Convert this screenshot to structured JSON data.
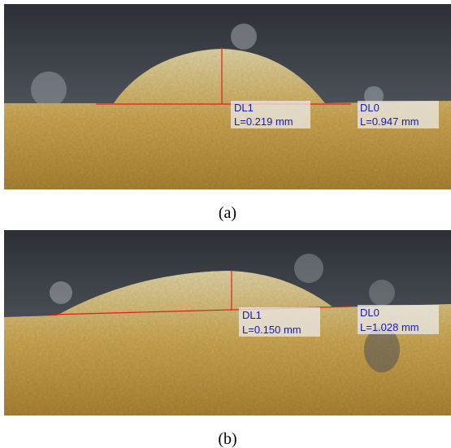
{
  "panels": [
    {
      "label": "(a)",
      "annotations": [
        {
          "name": "DL1",
          "measure": "L=0.219 mm"
        },
        {
          "name": "DL0",
          "measure": "L=0.947 mm"
        }
      ]
    },
    {
      "label": "(b)",
      "annotations": [
        {
          "name": "DL1",
          "measure": "L=0.150 mm"
        },
        {
          "name": "DL0",
          "measure": "L=1.028 mm"
        }
      ]
    }
  ]
}
